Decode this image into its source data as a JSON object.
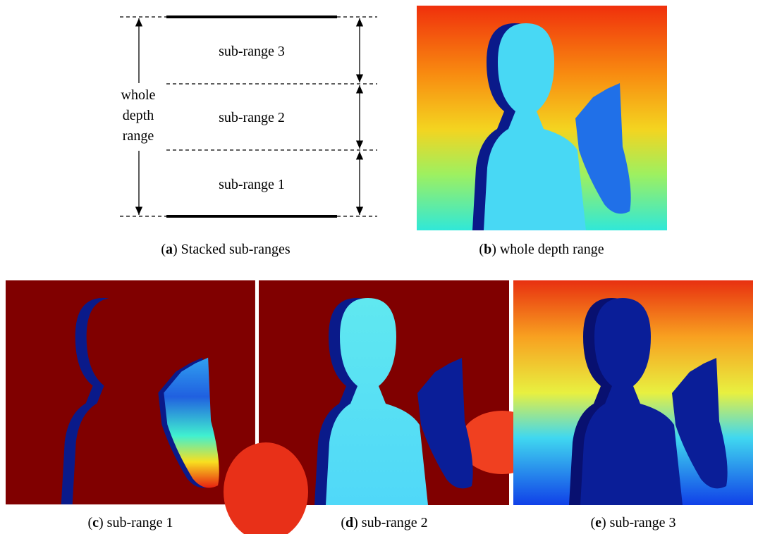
{
  "diagram": {
    "sub_ranges": [
      "sub-range 3",
      "sub-range 2",
      "sub-range 1"
    ],
    "whole_label": [
      "whole",
      "depth",
      "range"
    ]
  },
  "captions": [
    {
      "open": "(",
      "label": "a",
      "rest": ") Stacked sub-ranges"
    },
    {
      "open": "(",
      "label": "b",
      "rest": ") whole depth range"
    },
    {
      "open": "(",
      "label": "c",
      "rest": ") sub-range 1"
    },
    {
      "open": "(",
      "label": "d",
      "rest": ") sub-range 2"
    },
    {
      "open": "(",
      "label": "e",
      "rest": ") sub-range 3"
    }
  ]
}
